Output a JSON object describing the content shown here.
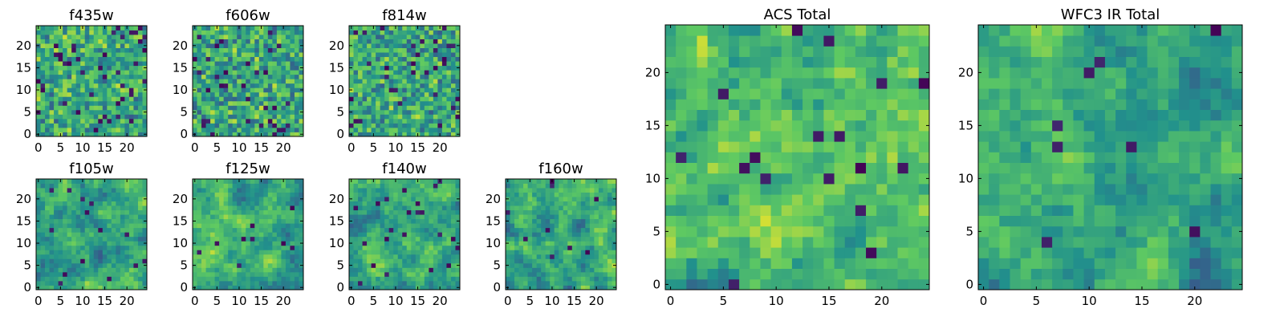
{
  "figure": {
    "colormap": [
      "#440154",
      "#3b528b",
      "#21918c",
      "#5ec962",
      "#fde725"
    ],
    "panel_frame_color": "#000000",
    "background": "#ffffff"
  },
  "chart_data": [
    {
      "id": "f435w",
      "type": "heatmap",
      "title": "f435w",
      "grid_size": 25,
      "xlim": [
        0,
        24
      ],
      "ylim": [
        0,
        24
      ],
      "xticks": [
        0,
        5,
        10,
        15,
        20
      ],
      "yticks": [
        0,
        5,
        10,
        15,
        20
      ],
      "noise": "pixel",
      "smoothness": 0.0,
      "level_bias": 0.62,
      "dark_pixel_rate": 0.06,
      "seed": 11
    },
    {
      "id": "f606w",
      "type": "heatmap",
      "title": "f606w",
      "grid_size": 25,
      "xlim": [
        0,
        24
      ],
      "ylim": [
        0,
        24
      ],
      "xticks": [
        0,
        5,
        10,
        15,
        20
      ],
      "yticks": [
        0,
        5,
        10,
        15,
        20
      ],
      "noise": "pixel",
      "smoothness": 0.1,
      "level_bias": 0.6,
      "dark_pixel_rate": 0.05,
      "seed": 23
    },
    {
      "id": "f814w",
      "type": "heatmap",
      "title": "f814w",
      "grid_size": 25,
      "xlim": [
        0,
        24
      ],
      "ylim": [
        0,
        24
      ],
      "xticks": [
        0,
        5,
        10,
        15,
        20
      ],
      "yticks": [
        0,
        5,
        10,
        15,
        20
      ],
      "noise": "pixel",
      "smoothness": 0.1,
      "level_bias": 0.6,
      "dark_pixel_rate": 0.05,
      "seed": 37
    },
    {
      "id": "f105w",
      "type": "heatmap",
      "title": "f105w",
      "grid_size": 25,
      "xlim": [
        0,
        24
      ],
      "ylim": [
        0,
        24
      ],
      "xticks": [
        0,
        5,
        10,
        15,
        20
      ],
      "yticks": [
        0,
        5,
        10,
        15,
        20
      ],
      "noise": "smooth",
      "smoothness": 0.6,
      "level_bias": 0.62,
      "dark_pixel_rate": 0.02,
      "seed": 41
    },
    {
      "id": "f125w",
      "type": "heatmap",
      "title": "f125w",
      "grid_size": 25,
      "xlim": [
        0,
        24
      ],
      "ylim": [
        0,
        24
      ],
      "xticks": [
        0,
        5,
        10,
        15,
        20
      ],
      "yticks": [
        0,
        5,
        10,
        15,
        20
      ],
      "noise": "smooth",
      "smoothness": 0.6,
      "level_bias": 0.64,
      "dark_pixel_rate": 0.02,
      "seed": 53
    },
    {
      "id": "f140w",
      "type": "heatmap",
      "title": "f140w",
      "grid_size": 25,
      "xlim": [
        0,
        24
      ],
      "ylim": [
        0,
        24
      ],
      "xticks": [
        0,
        5,
        10,
        15,
        20
      ],
      "yticks": [
        0,
        5,
        10,
        15,
        20
      ],
      "noise": "smooth",
      "smoothness": 0.55,
      "level_bias": 0.56,
      "dark_pixel_rate": 0.03,
      "seed": 67
    },
    {
      "id": "f160w",
      "type": "heatmap",
      "title": "f160w",
      "grid_size": 25,
      "xlim": [
        0,
        24
      ],
      "ylim": [
        0,
        24
      ],
      "xticks": [
        0,
        5,
        10,
        15,
        20
      ],
      "yticks": [
        0,
        5,
        10,
        15,
        20
      ],
      "noise": "smooth",
      "smoothness": 0.6,
      "level_bias": 0.58,
      "dark_pixel_rate": 0.02,
      "seed": 79
    },
    {
      "id": "acs-total",
      "type": "heatmap",
      "title": "ACS Total",
      "grid_size": 25,
      "xlim": [
        0,
        24
      ],
      "ylim": [
        0,
        24
      ],
      "xticks": [
        0,
        5,
        10,
        15,
        20
      ],
      "yticks": [
        0,
        5,
        10,
        15,
        20
      ],
      "noise": "pixel",
      "smoothness": 0.2,
      "level_bias": 0.7,
      "dark_pixel_rate": 0.025,
      "seed": 97
    },
    {
      "id": "wfc3-ir-total",
      "type": "heatmap",
      "title": "WFC3 IR Total",
      "grid_size": 25,
      "xlim": [
        0,
        24
      ],
      "ylim": [
        0,
        24
      ],
      "xticks": [
        0,
        5,
        10,
        15,
        20
      ],
      "yticks": [
        0,
        5,
        10,
        15,
        20
      ],
      "noise": "smooth",
      "smoothness": 0.7,
      "level_bias": 0.55,
      "dark_pixel_rate": 0.015,
      "seed": 131
    }
  ]
}
